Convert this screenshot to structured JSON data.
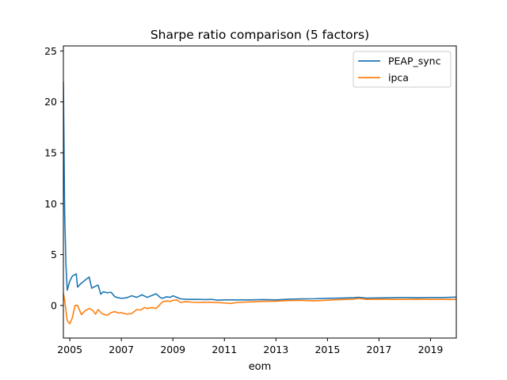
{
  "chart_data": {
    "type": "line",
    "title": "Sharpe ratio comparison (5 factors)",
    "xlabel": "eom",
    "ylabel": "",
    "xlim": [
      2004.75,
      2020.0
    ],
    "ylim": [
      -3.2,
      25.5
    ],
    "x_ticks": [
      2005,
      2007,
      2009,
      2011,
      2013,
      2015,
      2017,
      2019
    ],
    "x_tick_labels": [
      "2005",
      "2007",
      "2009",
      "2011",
      "2013",
      "2015",
      "2017",
      "2019"
    ],
    "y_ticks": [
      0,
      5,
      10,
      15,
      20,
      25
    ],
    "y_tick_labels": [
      "0",
      "5",
      "10",
      "15",
      "20",
      "25"
    ],
    "grid": false,
    "legend_position": "upper-right",
    "series": [
      {
        "name": "PEAP_sync",
        "color": "#1f77b4",
        "x": [
          2004.75,
          2004.8,
          2004.85,
          2004.9,
          2005.0,
          2005.1,
          2005.25,
          2005.3,
          2005.45,
          2005.6,
          2005.75,
          2005.85,
          2006.0,
          2006.1,
          2006.2,
          2006.3,
          2006.45,
          2006.6,
          2006.75,
          2006.9,
          2007.0,
          2007.2,
          2007.4,
          2007.6,
          2007.8,
          2008.0,
          2008.2,
          2008.35,
          2008.5,
          2008.6,
          2008.75,
          2008.9,
          2009.0,
          2009.1,
          2009.3,
          2009.5,
          2009.75,
          2010.0,
          2010.25,
          2010.5,
          2010.75,
          2011.0,
          2011.5,
          2012.0,
          2012.5,
          2013.0,
          2013.5,
          2014.0,
          2014.5,
          2015.0,
          2015.5,
          2016.0,
          2016.2,
          2016.5,
          2017.0,
          2017.5,
          2018.0,
          2018.5,
          2019.0,
          2019.5,
          2020.0
        ],
        "values": [
          22.0,
          9.0,
          4.0,
          1.5,
          2.4,
          2.9,
          3.1,
          1.8,
          2.2,
          2.5,
          2.8,
          1.7,
          1.9,
          2.0,
          1.1,
          1.35,
          1.25,
          1.3,
          0.85,
          0.75,
          0.7,
          0.75,
          0.95,
          0.8,
          1.05,
          0.8,
          1.0,
          1.15,
          0.8,
          0.7,
          0.85,
          0.8,
          0.95,
          0.85,
          0.65,
          0.62,
          0.6,
          0.6,
          0.58,
          0.6,
          0.52,
          0.55,
          0.55,
          0.55,
          0.58,
          0.55,
          0.62,
          0.65,
          0.66,
          0.7,
          0.72,
          0.76,
          0.8,
          0.72,
          0.74,
          0.76,
          0.78,
          0.76,
          0.78,
          0.78,
          0.82
        ]
      },
      {
        "name": "ipca",
        "color": "#ff7f0e",
        "x": [
          2004.75,
          2004.8,
          2004.85,
          2004.9,
          2005.0,
          2005.1,
          2005.2,
          2005.3,
          2005.45,
          2005.6,
          2005.75,
          2005.9,
          2006.0,
          2006.1,
          2006.25,
          2006.4,
          2006.5,
          2006.6,
          2006.75,
          2006.9,
          2007.0,
          2007.2,
          2007.4,
          2007.6,
          2007.75,
          2007.9,
          2008.0,
          2008.2,
          2008.35,
          2008.5,
          2008.6,
          2008.75,
          2008.9,
          2009.0,
          2009.15,
          2009.3,
          2009.5,
          2009.75,
          2010.0,
          2010.5,
          2011.0,
          2011.25,
          2011.5,
          2012.0,
          2012.5,
          2013.0,
          2013.5,
          2014.0,
          2014.5,
          2015.0,
          2015.5,
          2016.0,
          2016.2,
          2016.5,
          2017.0,
          2017.5,
          2018.0,
          2018.5,
          2019.0,
          2019.5,
          2020.0
        ],
        "values": [
          1.2,
          0.5,
          -0.5,
          -1.5,
          -1.8,
          -1.2,
          0.0,
          0.0,
          -0.9,
          -0.5,
          -0.3,
          -0.5,
          -0.85,
          -0.4,
          -0.8,
          -0.95,
          -0.9,
          -0.7,
          -0.6,
          -0.75,
          -0.7,
          -0.85,
          -0.8,
          -0.4,
          -0.45,
          -0.2,
          -0.3,
          -0.2,
          -0.3,
          0.1,
          0.35,
          0.45,
          0.4,
          0.5,
          0.55,
          0.3,
          0.38,
          0.32,
          0.3,
          0.32,
          0.25,
          0.2,
          0.3,
          0.35,
          0.4,
          0.42,
          0.48,
          0.5,
          0.45,
          0.52,
          0.58,
          0.62,
          0.7,
          0.6,
          0.62,
          0.6,
          0.6,
          0.62,
          0.6,
          0.6,
          0.6
        ]
      }
    ]
  }
}
